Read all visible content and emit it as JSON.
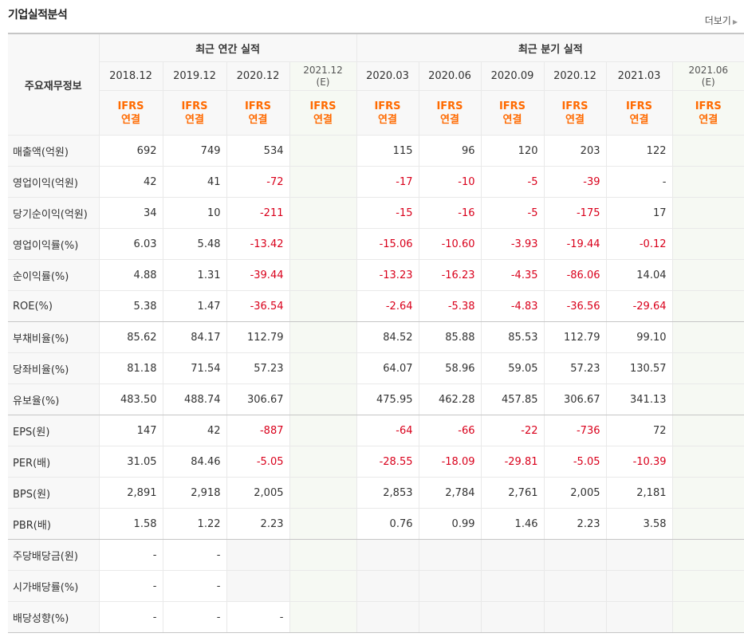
{
  "section_title": "기업실적분석",
  "more_label": "더보기",
  "header": {
    "row_label": "주요재무정보",
    "annual_group": "최근 연간 실적",
    "quarter_group": "최근 분기 실적",
    "periods": [
      {
        "date": "2018.12",
        "estimate": "",
        "type1": "IFRS",
        "type2": "연결"
      },
      {
        "date": "2019.12",
        "estimate": "",
        "type1": "IFRS",
        "type2": "연결"
      },
      {
        "date": "2020.12",
        "estimate": "",
        "type1": "IFRS",
        "type2": "연결"
      },
      {
        "date": "2021.12",
        "estimate": "(E)",
        "type1": "IFRS",
        "type2": "연결"
      },
      {
        "date": "2020.03",
        "estimate": "",
        "type1": "IFRS",
        "type2": "연결"
      },
      {
        "date": "2020.06",
        "estimate": "",
        "type1": "IFRS",
        "type2": "연결"
      },
      {
        "date": "2020.09",
        "estimate": "",
        "type1": "IFRS",
        "type2": "연결"
      },
      {
        "date": "2020.12",
        "estimate": "",
        "type1": "IFRS",
        "type2": "연결"
      },
      {
        "date": "2021.03",
        "estimate": "",
        "type1": "IFRS",
        "type2": "연결"
      },
      {
        "date": "2021.06",
        "estimate": "(E)",
        "type1": "IFRS",
        "type2": "연결"
      }
    ]
  },
  "rows": [
    {
      "label": "매출액(억원)",
      "values": [
        "692",
        "749",
        "534",
        "",
        "115",
        "96",
        "120",
        "203",
        "122",
        ""
      ]
    },
    {
      "label": "영업이익(억원)",
      "values": [
        "42",
        "41",
        "-72",
        "",
        "-17",
        "-10",
        "-5",
        "-39",
        "-",
        ""
      ]
    },
    {
      "label": "당기순이익(억원)",
      "values": [
        "34",
        "10",
        "-211",
        "",
        "-15",
        "-16",
        "-5",
        "-175",
        "17",
        ""
      ]
    },
    {
      "label": "영업이익률(%)",
      "values": [
        "6.03",
        "5.48",
        "-13.42",
        "",
        "-15.06",
        "-10.60",
        "-3.93",
        "-19.44",
        "-0.12",
        ""
      ]
    },
    {
      "label": "순이익률(%)",
      "values": [
        "4.88",
        "1.31",
        "-39.44",
        "",
        "-13.23",
        "-16.23",
        "-4.35",
        "-86.06",
        "14.04",
        ""
      ]
    },
    {
      "label": "ROE(%)",
      "values": [
        "5.38",
        "1.47",
        "-36.54",
        "",
        "-2.64",
        "-5.38",
        "-4.83",
        "-36.56",
        "-29.64",
        ""
      ]
    },
    {
      "label": "부채비율(%)",
      "values": [
        "85.62",
        "84.17",
        "112.79",
        "",
        "84.52",
        "85.88",
        "85.53",
        "112.79",
        "99.10",
        ""
      ]
    },
    {
      "label": "당좌비율(%)",
      "values": [
        "81.18",
        "71.54",
        "57.23",
        "",
        "64.07",
        "58.96",
        "59.05",
        "57.23",
        "130.57",
        ""
      ]
    },
    {
      "label": "유보율(%)",
      "values": [
        "483.50",
        "488.74",
        "306.67",
        "",
        "475.95",
        "462.28",
        "457.85",
        "306.67",
        "341.13",
        ""
      ]
    },
    {
      "label": "EPS(원)",
      "values": [
        "147",
        "42",
        "-887",
        "",
        "-64",
        "-66",
        "-22",
        "-736",
        "72",
        ""
      ]
    },
    {
      "label": "PER(배)",
      "values": [
        "31.05",
        "84.46",
        "-5.05",
        "",
        "-28.55",
        "-18.09",
        "-29.81",
        "-5.05",
        "-10.39",
        ""
      ]
    },
    {
      "label": "BPS(원)",
      "values": [
        "2,891",
        "2,918",
        "2,005",
        "",
        "2,853",
        "2,784",
        "2,761",
        "2,005",
        "2,181",
        ""
      ]
    },
    {
      "label": "PBR(배)",
      "values": [
        "1.58",
        "1.22",
        "2.23",
        "",
        "0.76",
        "0.99",
        "1.46",
        "2.23",
        "3.58",
        ""
      ]
    },
    {
      "label": "주당배당금(원)",
      "values": [
        "-",
        "-",
        "",
        "",
        "",
        "",
        "",
        "",
        "",
        ""
      ]
    },
    {
      "label": "시가배당률(%)",
      "values": [
        "-",
        "-",
        "",
        "",
        "",
        "",
        "",
        "",
        "",
        ""
      ]
    },
    {
      "label": "배당성향(%)",
      "values": [
        "-",
        "-",
        "-",
        "",
        "",
        "",
        "",
        "",
        "",
        ""
      ]
    }
  ]
}
